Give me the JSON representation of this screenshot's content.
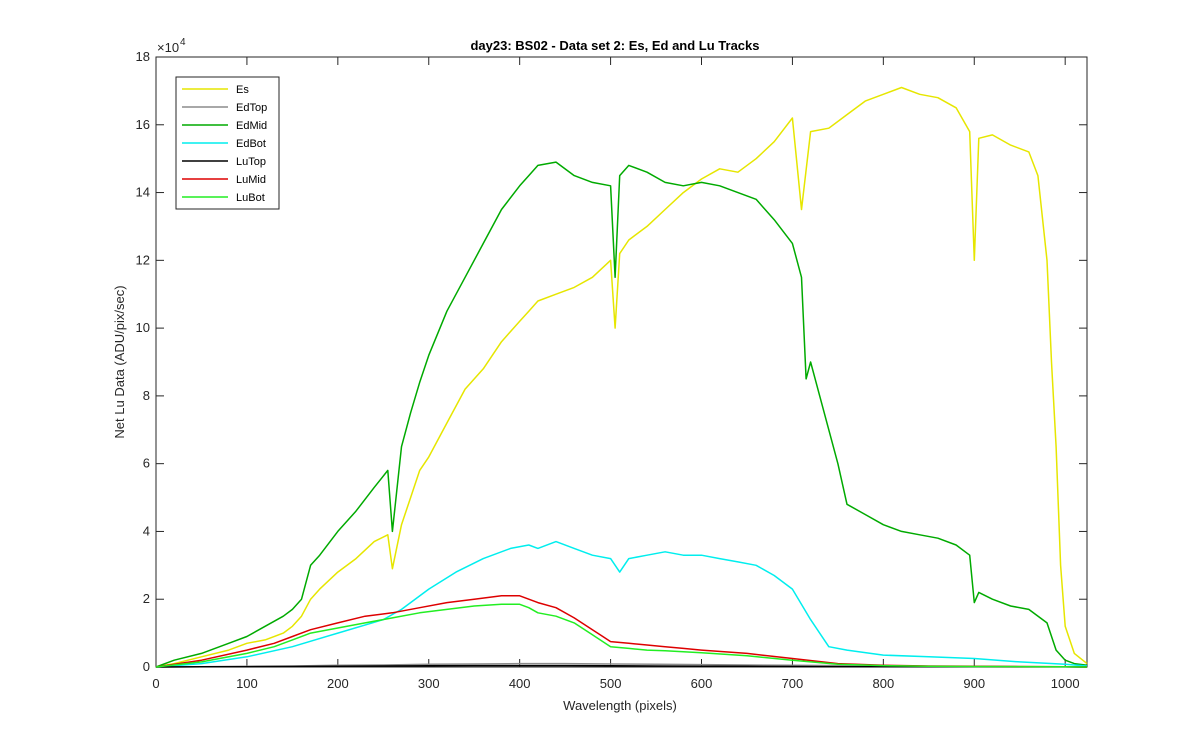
{
  "chart_data": {
    "type": "line",
    "title": "day23: BS02 - Data set 2: Es, Ed and Lu Tracks",
    "xlabel": "Wavelength (pixels)",
    "ylabel": "Net Lu Data (ADU/pix/sec)",
    "y_exponent_label": "×10",
    "y_exponent_power": "4",
    "xlim": [
      0,
      1024
    ],
    "ylim": [
      0,
      18
    ],
    "x_ticks": [
      0,
      100,
      200,
      300,
      400,
      500,
      600,
      700,
      800,
      900,
      1000
    ],
    "x_tick_labels": [
      "0",
      "100",
      "200",
      "300",
      "400",
      "500",
      "600",
      "700",
      "800",
      "900",
      "1000"
    ],
    "y_ticks": [
      0,
      2,
      4,
      6,
      8,
      10,
      12,
      14,
      16,
      18
    ],
    "y_tick_labels": [
      "0",
      "2",
      "4",
      "6",
      "8",
      "10",
      "12",
      "14",
      "16",
      "18"
    ],
    "legend_position": "top-left",
    "series": [
      {
        "name": "Es",
        "color": "#e6e600",
        "x": [
          0,
          20,
          50,
          80,
          100,
          120,
          140,
          150,
          160,
          170,
          180,
          200,
          220,
          240,
          255,
          260,
          270,
          280,
          290,
          300,
          320,
          340,
          360,
          380,
          400,
          410,
          420,
          440,
          460,
          480,
          500,
          505,
          510,
          520,
          540,
          560,
          580,
          600,
          620,
          640,
          660,
          680,
          700,
          710,
          720,
          740,
          760,
          780,
          800,
          820,
          840,
          860,
          880,
          895,
          900,
          905,
          920,
          940,
          960,
          970,
          980,
          985,
          990,
          995,
          1000,
          1010,
          1024
        ],
        "values": [
          0,
          0.1,
          0.3,
          0.5,
          0.7,
          0.8,
          1.0,
          1.2,
          1.5,
          2.0,
          2.3,
          2.8,
          3.2,
          3.7,
          3.9,
          2.9,
          4.2,
          5.0,
          5.8,
          6.2,
          7.2,
          8.2,
          8.8,
          9.6,
          10.2,
          10.5,
          10.8,
          11.0,
          11.2,
          11.5,
          12.0,
          10.0,
          12.2,
          12.6,
          13.0,
          13.5,
          14.0,
          14.4,
          14.7,
          14.6,
          15.0,
          15.5,
          16.2,
          13.5,
          15.8,
          15.9,
          16.3,
          16.7,
          16.9,
          17.1,
          16.9,
          16.8,
          16.5,
          15.8,
          12.0,
          15.6,
          15.7,
          15.4,
          15.2,
          14.5,
          12.0,
          9.0,
          6.5,
          3.0,
          1.2,
          0.4,
          0.1
        ]
      },
      {
        "name": "EdTop",
        "color": "#8c8c8c",
        "x": [
          0,
          50,
          100,
          150,
          200,
          250,
          300,
          350,
          400,
          450,
          500,
          550,
          600,
          650,
          700,
          750,
          800,
          850,
          900,
          950,
          1000,
          1024
        ],
        "values": [
          0,
          0.01,
          0.02,
          0.03,
          0.05,
          0.06,
          0.08,
          0.09,
          0.1,
          0.1,
          0.09,
          0.08,
          0.07,
          0.06,
          0.05,
          0.04,
          0.03,
          0.02,
          0.02,
          0.01,
          0.01,
          0
        ]
      },
      {
        "name": "EdMid",
        "color": "#00aa00",
        "x": [
          0,
          20,
          50,
          80,
          100,
          120,
          140,
          150,
          160,
          170,
          180,
          200,
          220,
          240,
          255,
          260,
          270,
          280,
          290,
          300,
          320,
          340,
          360,
          380,
          400,
          410,
          420,
          440,
          460,
          480,
          500,
          505,
          510,
          520,
          540,
          560,
          580,
          600,
          620,
          640,
          660,
          680,
          700,
          710,
          715,
          720,
          730,
          740,
          750,
          760,
          780,
          800,
          820,
          840,
          860,
          880,
          895,
          900,
          905,
          920,
          940,
          960,
          980,
          990,
          1000,
          1010,
          1024
        ],
        "values": [
          0,
          0.2,
          0.4,
          0.7,
          0.9,
          1.2,
          1.5,
          1.7,
          2.0,
          3.0,
          3.3,
          4.0,
          4.6,
          5.3,
          5.8,
          4.0,
          6.5,
          7.5,
          8.4,
          9.2,
          10.5,
          11.5,
          12.5,
          13.5,
          14.2,
          14.5,
          14.8,
          14.9,
          14.5,
          14.3,
          14.2,
          11.5,
          14.5,
          14.8,
          14.6,
          14.3,
          14.2,
          14.3,
          14.2,
          14.0,
          13.8,
          13.2,
          12.5,
          11.5,
          8.5,
          9.0,
          8.0,
          7.0,
          6.0,
          4.8,
          4.5,
          4.2,
          4.0,
          3.9,
          3.8,
          3.6,
          3.3,
          1.9,
          2.2,
          2.0,
          1.8,
          1.7,
          1.3,
          0.5,
          0.2,
          0.1,
          0.05
        ]
      },
      {
        "name": "EdBot",
        "color": "#00eeee",
        "x": [
          0,
          50,
          100,
          150,
          200,
          250,
          270,
          300,
          330,
          360,
          390,
          410,
          420,
          440,
          460,
          480,
          500,
          510,
          520,
          540,
          560,
          580,
          600,
          620,
          640,
          660,
          680,
          700,
          720,
          740,
          760,
          800,
          850,
          900,
          950,
          1000,
          1024
        ],
        "values": [
          0,
          0.1,
          0.3,
          0.6,
          1.0,
          1.4,
          1.7,
          2.3,
          2.8,
          3.2,
          3.5,
          3.6,
          3.5,
          3.7,
          3.5,
          3.3,
          3.2,
          2.8,
          3.2,
          3.3,
          3.4,
          3.3,
          3.3,
          3.2,
          3.1,
          3.0,
          2.7,
          2.3,
          1.4,
          0.6,
          0.5,
          0.35,
          0.3,
          0.25,
          0.15,
          0.08,
          0.03
        ]
      },
      {
        "name": "LuTop",
        "color": "#000000",
        "x": [
          0,
          50,
          100,
          150,
          200,
          250,
          300,
          350,
          400,
          450,
          500,
          550,
          600,
          650,
          700,
          750,
          800,
          850,
          900,
          950,
          1000,
          1024
        ],
        "values": [
          0,
          0.005,
          0.01,
          0.015,
          0.02,
          0.03,
          0.035,
          0.04,
          0.04,
          0.04,
          0.035,
          0.03,
          0.025,
          0.02,
          0.015,
          0.01,
          0.008,
          0.006,
          0.005,
          0.003,
          0.002,
          0
        ]
      },
      {
        "name": "LuMid",
        "color": "#dd0000",
        "x": [
          0,
          50,
          100,
          130,
          150,
          170,
          200,
          230,
          260,
          290,
          320,
          350,
          380,
          400,
          410,
          420,
          440,
          460,
          480,
          500,
          520,
          540,
          560,
          580,
          600,
          650,
          700,
          750,
          800,
          850,
          900,
          1000,
          1024
        ],
        "values": [
          0,
          0.2,
          0.5,
          0.7,
          0.9,
          1.1,
          1.3,
          1.5,
          1.6,
          1.75,
          1.9,
          2.0,
          2.1,
          2.1,
          2.0,
          1.9,
          1.75,
          1.45,
          1.1,
          0.75,
          0.7,
          0.65,
          0.6,
          0.55,
          0.5,
          0.4,
          0.25,
          0.1,
          0.05,
          0.03,
          0.02,
          0.01,
          0
        ]
      },
      {
        "name": "LuBot",
        "color": "#22ee22",
        "x": [
          0,
          50,
          100,
          130,
          150,
          170,
          200,
          230,
          260,
          290,
          320,
          350,
          380,
          400,
          410,
          420,
          440,
          460,
          480,
          500,
          520,
          540,
          560,
          580,
          600,
          650,
          700,
          750,
          800,
          850,
          900,
          1000,
          1024
        ],
        "values": [
          0,
          0.15,
          0.4,
          0.6,
          0.8,
          1.0,
          1.15,
          1.3,
          1.45,
          1.6,
          1.7,
          1.8,
          1.85,
          1.85,
          1.75,
          1.6,
          1.5,
          1.3,
          0.95,
          0.6,
          0.55,
          0.5,
          0.48,
          0.45,
          0.42,
          0.33,
          0.2,
          0.08,
          0.04,
          0.02,
          0.015,
          0.008,
          0
        ]
      }
    ]
  }
}
